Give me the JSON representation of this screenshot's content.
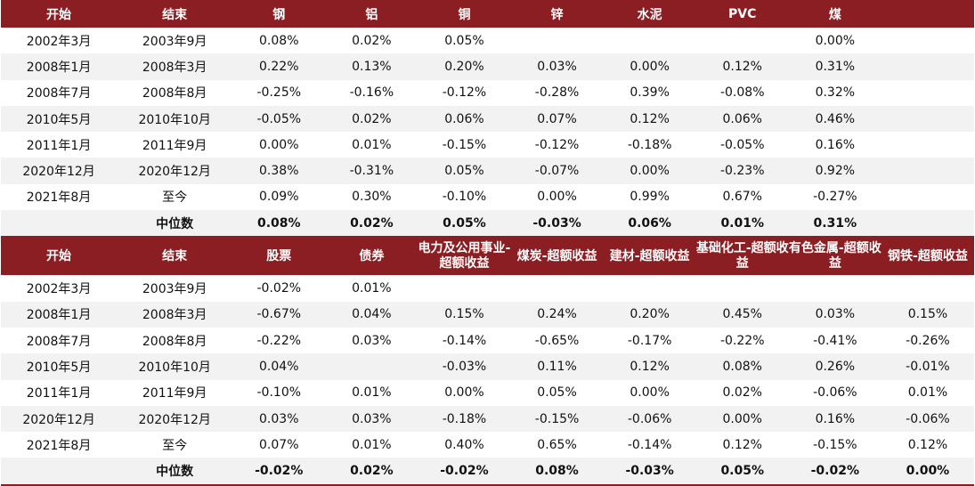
{
  "table1": {
    "headers": [
      "开始",
      "结束",
      "钢",
      "铝",
      "铜",
      "锌",
      "水泥",
      "PVC",
      "煤",
      ""
    ],
    "rows": [
      [
        "2002年3月",
        "2003年9月",
        "0.08%",
        "0.02%",
        "0.05%",
        "",
        "",
        "",
        "0.00%",
        ""
      ],
      [
        "2008年1月",
        "2008年3月",
        "0.22%",
        "0.13%",
        "0.20%",
        "0.03%",
        "0.00%",
        "0.12%",
        "0.31%",
        ""
      ],
      [
        "2008年7月",
        "2008年8月",
        "-0.25%",
        "-0.16%",
        "-0.12%",
        "-0.28%",
        "0.39%",
        "-0.08%",
        "0.32%",
        ""
      ],
      [
        "2010年5月",
        "2010年10月",
        "-0.05%",
        "0.02%",
        "0.06%",
        "0.07%",
        "0.12%",
        "0.06%",
        "0.46%",
        ""
      ],
      [
        "2011年1月",
        "2011年9月",
        "0.00%",
        "0.01%",
        "-0.15%",
        "-0.12%",
        "-0.18%",
        "-0.05%",
        "0.16%",
        ""
      ],
      [
        "2020年12月",
        "2020年12月",
        "0.38%",
        "-0.31%",
        "0.05%",
        "-0.07%",
        "0.00%",
        "-0.23%",
        "0.92%",
        ""
      ],
      [
        "2021年8月",
        "至今",
        "0.09%",
        "0.30%",
        "-0.10%",
        "0.00%",
        "0.99%",
        "0.67%",
        "-0.27%",
        ""
      ]
    ],
    "median": [
      "",
      "中位数",
      "0.08%",
      "0.02%",
      "0.05%",
      "-0.03%",
      "0.06%",
      "0.01%",
      "0.31%",
      ""
    ]
  },
  "table2": {
    "headers": [
      "开始",
      "结束",
      "股票",
      "债券",
      "电力及公用事业-超额收益",
      "煤炭-超额收益",
      "建材-超额收益",
      "基础化工-超额收益",
      "有色金属-超额收益",
      "钢铁-超额收益"
    ],
    "rows": [
      [
        "2002年3月",
        "2003年9月",
        "-0.02%",
        "0.01%",
        "",
        "",
        "",
        "",
        "",
        ""
      ],
      [
        "2008年1月",
        "2008年3月",
        "-0.67%",
        "0.04%",
        "0.15%",
        "0.24%",
        "0.20%",
        "0.45%",
        "0.03%",
        "0.15%"
      ],
      [
        "2008年7月",
        "2008年8月",
        "-0.22%",
        "0.03%",
        "-0.14%",
        "-0.65%",
        "-0.17%",
        "-0.22%",
        "-0.41%",
        "-0.26%"
      ],
      [
        "2010年5月",
        "2010年10月",
        "0.04%",
        "",
        "-0.03%",
        "0.11%",
        "0.12%",
        "0.08%",
        "0.26%",
        "-0.01%"
      ],
      [
        "2011年1月",
        "2011年9月",
        "-0.10%",
        "0.01%",
        "0.00%",
        "0.05%",
        "0.00%",
        "0.02%",
        "-0.06%",
        "0.01%"
      ],
      [
        "2020年12月",
        "2020年12月",
        "0.03%",
        "0.03%",
        "-0.18%",
        "-0.15%",
        "-0.06%",
        "0.00%",
        "0.16%",
        "-0.06%"
      ],
      [
        "2021年8月",
        "至今",
        "0.07%",
        "0.01%",
        "0.40%",
        "0.65%",
        "-0.14%",
        "0.12%",
        "-0.15%",
        "0.12%"
      ]
    ],
    "median": [
      "",
      "中位数",
      "-0.02%",
      "0.02%",
      "-0.02%",
      "0.08%",
      "-0.03%",
      "0.05%",
      "-0.02%",
      "0.00%"
    ]
  }
}
